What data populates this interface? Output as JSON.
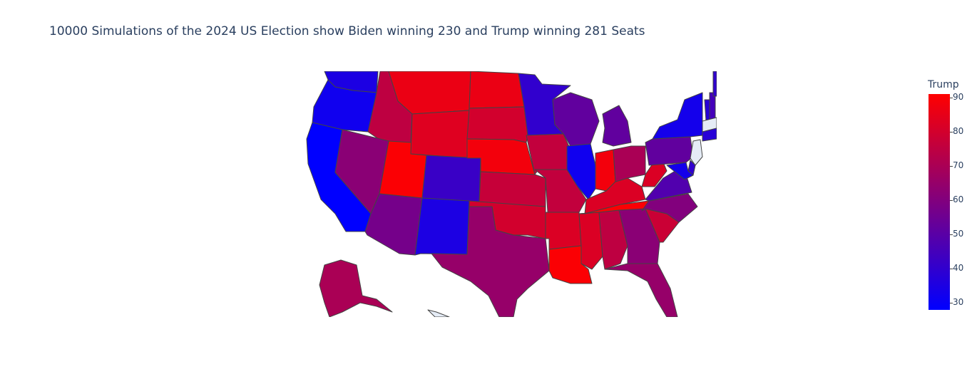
{
  "title": "10000 Simulations of the 2024 US Election show Biden winning 230 and Trump winning 281 Seats",
  "colorbar": {
    "title": "Trump",
    "min": 28,
    "max": 91,
    "ticks": [
      "90",
      "80",
      "70",
      "60",
      "50",
      "40",
      "30"
    ],
    "low_color": "#0000ff",
    "high_color": "#ff0000"
  },
  "no_data_color": "#e5ecf6",
  "states": [
    {
      "name": "WA",
      "trump": 35
    },
    {
      "name": "OR",
      "trump": 32
    },
    {
      "name": "CA",
      "trump": 28
    },
    {
      "name": "ID",
      "trump": 75
    },
    {
      "name": "NV",
      "trump": 62
    },
    {
      "name": "UT",
      "trump": 90
    },
    {
      "name": "AZ",
      "trump": 57
    },
    {
      "name": "MT",
      "trump": 86
    },
    {
      "name": "WY",
      "trump": 83
    },
    {
      "name": "CO",
      "trump": 42
    },
    {
      "name": "NM",
      "trump": 35
    },
    {
      "name": "ND",
      "trump": 86
    },
    {
      "name": "SD",
      "trump": 80
    },
    {
      "name": "NE",
      "trump": 88
    },
    {
      "name": "KS",
      "trump": 77
    },
    {
      "name": "OK",
      "trump": 80
    },
    {
      "name": "TX",
      "trump": 65
    },
    {
      "name": "MN",
      "trump": 40
    },
    {
      "name": "IA",
      "trump": 76
    },
    {
      "name": "MO",
      "trump": 76
    },
    {
      "name": "AR",
      "trump": 82
    },
    {
      "name": "LA",
      "trump": 90
    },
    {
      "name": "WI",
      "trump": 52
    },
    {
      "name": "IL",
      "trump": 32
    },
    {
      "name": "MS",
      "trump": 82
    },
    {
      "name": "AL",
      "trump": 75
    },
    {
      "name": "MI",
      "trump": 52
    },
    {
      "name": "IN",
      "trump": 88
    },
    {
      "name": "KY",
      "trump": 82
    },
    {
      "name": "TN",
      "trump": 90
    },
    {
      "name": "OH",
      "trump": 70
    },
    {
      "name": "GA",
      "trump": 62
    },
    {
      "name": "FL",
      "trump": 65
    },
    {
      "name": "SC",
      "trump": 78
    },
    {
      "name": "NC",
      "trump": 60
    },
    {
      "name": "VA",
      "trump": 48
    },
    {
      "name": "WV",
      "trump": 82
    },
    {
      "name": "PA",
      "trump": 52
    },
    {
      "name": "NY",
      "trump": 33
    },
    {
      "name": "ME",
      "trump": 40
    },
    {
      "name": "VT",
      "trump": 38
    },
    {
      "name": "NH",
      "trump": 45
    },
    {
      "name": "MD",
      "trump": 33
    },
    {
      "name": "DE",
      "trump": 40
    },
    {
      "name": "NJ",
      "trump": null
    },
    {
      "name": "MA",
      "trump": null
    },
    {
      "name": "CT",
      "trump": 38
    },
    {
      "name": "AK",
      "trump": 70
    },
    {
      "name": "HI",
      "trump": null
    }
  ]
}
